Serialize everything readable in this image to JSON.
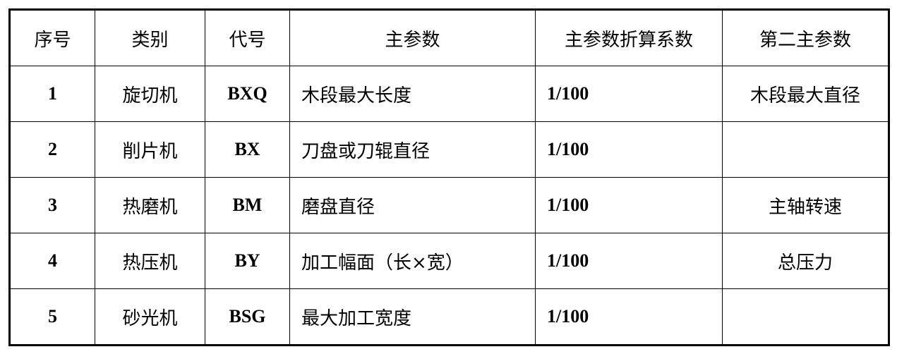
{
  "table": {
    "headers": [
      "序号",
      "类别",
      "代号",
      "主参数",
      "主参数折算系数",
      "第二主参数"
    ],
    "rows": [
      {
        "no": "1",
        "category": "旋切机",
        "code": "BXQ",
        "main_param": "木段最大长度",
        "factor": "1/100",
        "second_param": "木段最大直径"
      },
      {
        "no": "2",
        "category": "削片机",
        "code": "BX",
        "main_param": "刀盘或刀辊直径",
        "factor": "1/100",
        "second_param": ""
      },
      {
        "no": "3",
        "category": "热磨机",
        "code": "BM",
        "main_param": "磨盘直径",
        "factor": "1/100",
        "second_param": "主轴转速"
      },
      {
        "no": "4",
        "category": "热压机",
        "code": "BY",
        "main_param": "加工幅面（长×宽）",
        "factor": "1/100",
        "second_param": "总压力"
      },
      {
        "no": "5",
        "category": "砂光机",
        "code": "BSG",
        "main_param": "最大加工宽度",
        "factor": "1/100",
        "second_param": ""
      }
    ]
  }
}
